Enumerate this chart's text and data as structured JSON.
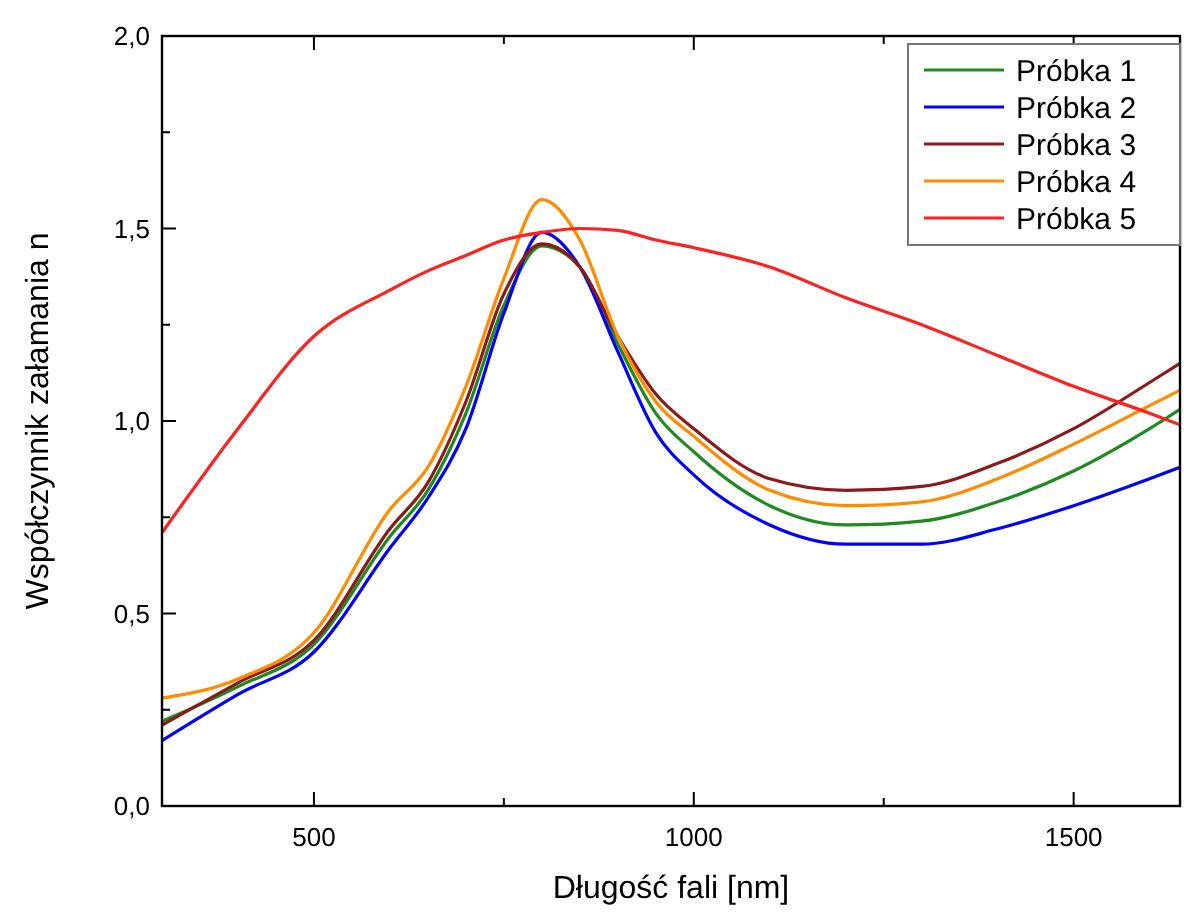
{
  "chart_data": {
    "type": "line",
    "xlabel": "Długość fali [nm]",
    "ylabel": "Współczynnik załamania n",
    "x": [
      300,
      400,
      500,
      600,
      650,
      700,
      750,
      800,
      850,
      900,
      950,
      1000,
      1100,
      1200,
      1300,
      1400,
      1500,
      1600,
      1640
    ],
    "xlim": [
      300,
      1640
    ],
    "xticks": [
      500,
      {
        "value": 750,
        "label": null
      },
      1000,
      {
        "value": 1250,
        "label": null
      },
      1500
    ],
    "ylim": [
      0,
      2
    ],
    "yticks": [
      {
        "value": 0,
        "label": "0,0"
      },
      {
        "value": 0.25,
        "label": null
      },
      {
        "value": 0.5,
        "label": "0,5"
      },
      {
        "value": 0.75,
        "label": null
      },
      {
        "value": 1,
        "label": "1,0"
      },
      {
        "value": 1.25,
        "label": null
      },
      {
        "value": 1.5,
        "label": "1,5"
      },
      {
        "value": 1.75,
        "label": null
      },
      {
        "value": 2,
        "label": "2,0"
      }
    ],
    "grid": false,
    "legend": "top right",
    "marker": "none",
    "line_style": "solid",
    "series": [
      {
        "name": "Próbka 1",
        "color": "#1f8a1f",
        "values": [
          0.22,
          0.31,
          0.42,
          0.7,
          0.82,
          1.02,
          1.3,
          1.455,
          1.4,
          1.2,
          1.02,
          0.92,
          0.78,
          0.73,
          0.74,
          0.79,
          0.87,
          0.98,
          1.03
        ]
      },
      {
        "name": "Próbka 2",
        "color": "#0000ff",
        "values": [
          0.17,
          0.29,
          0.4,
          0.67,
          0.8,
          0.98,
          1.28,
          1.49,
          1.4,
          1.18,
          0.97,
          0.86,
          0.73,
          0.68,
          0.68,
          0.72,
          0.78,
          0.85,
          0.88
        ]
      },
      {
        "name": "Próbka 3",
        "color": "#8b1a1a",
        "values": [
          0.21,
          0.32,
          0.43,
          0.72,
          0.84,
          1.05,
          1.33,
          1.46,
          1.4,
          1.22,
          1.07,
          0.98,
          0.85,
          0.82,
          0.83,
          0.89,
          0.98,
          1.1,
          1.15
        ]
      },
      {
        "name": "Próbka 4",
        "color": "#ff8c00",
        "values": [
          0.28,
          0.33,
          0.45,
          0.77,
          0.88,
          1.09,
          1.37,
          1.575,
          1.47,
          1.22,
          1.05,
          0.96,
          0.82,
          0.78,
          0.79,
          0.85,
          0.94,
          1.04,
          1.08
        ]
      },
      {
        "name": "Próbka 5",
        "color": "#ff2020",
        "values": [
          0.71,
          0.98,
          1.22,
          1.34,
          1.39,
          1.43,
          1.47,
          1.49,
          1.5,
          1.495,
          1.47,
          1.45,
          1.4,
          1.32,
          1.25,
          1.17,
          1.09,
          1.02,
          0.99
        ]
      }
    ]
  }
}
